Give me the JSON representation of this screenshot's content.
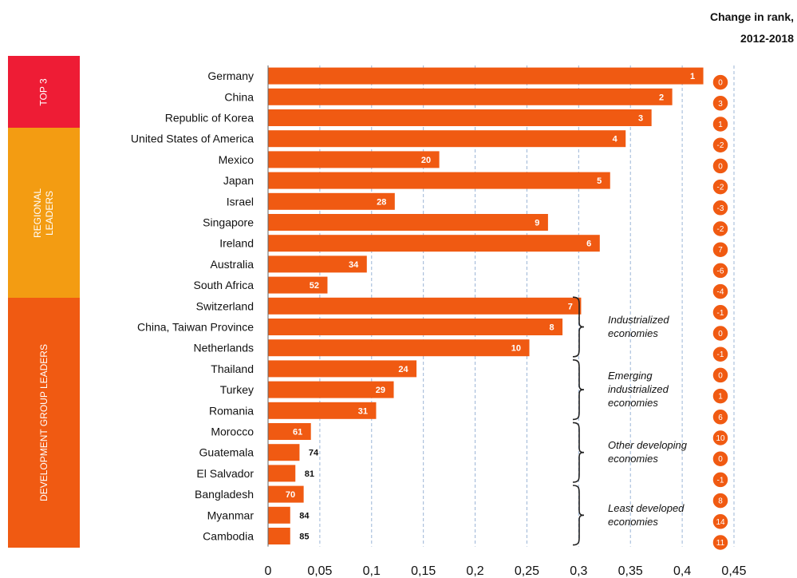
{
  "colors": {
    "bar": "#f05a12",
    "top3": "#ee1c35",
    "regional": "#f39c12",
    "development": "#f05a12",
    "grid": "#9bb5d6"
  },
  "bands": [
    {
      "label": "TOP 3",
      "color": "#ee1c35",
      "rows": [
        0,
        3
      ]
    },
    {
      "label_lines": [
        "REGIONAL",
        "LEADERS"
      ],
      "color": "#f39c12",
      "rows": [
        3,
        11
      ]
    },
    {
      "label": "DEVELOPMENT GROUP LEADERS",
      "color": "#f05a12",
      "rows": [
        11,
        23
      ]
    }
  ],
  "change_header": [
    "Change in rank,",
    "2012-2018"
  ],
  "chart_data": {
    "type": "bar",
    "orientation": "horizontal",
    "categories": [
      "Germany",
      "China",
      "Republic of Korea",
      "United States of America",
      "Mexico",
      "Japan",
      "Israel",
      "Singapore",
      "Ireland",
      "Australia",
      "South Africa",
      "Switzerland",
      "China, Taiwan Province",
      "Netherlands",
      "Thailand",
      "Turkey",
      "Romania",
      "Morocco",
      "Guatemala",
      "El Salvador",
      "Bangladesh",
      "Myanmar",
      "Cambodia"
    ],
    "values": [
      0.42,
      0.39,
      0.37,
      0.345,
      0.165,
      0.33,
      0.122,
      0.27,
      0.32,
      0.095,
      0.057,
      0.302,
      0.284,
      0.252,
      0.143,
      0.121,
      0.104,
      0.041,
      0.03,
      0.026,
      0.034,
      0.021,
      0.021
    ],
    "rank_labels": [
      "1",
      "2",
      "3",
      "4",
      "20",
      "5",
      "28",
      "9",
      "6",
      "34",
      "52",
      "7",
      "8",
      "10",
      "24",
      "29",
      "31",
      "61",
      "74",
      "81",
      "70",
      "84",
      "85"
    ],
    "rank_change": [
      "0",
      "3",
      "1",
      "-2",
      "0",
      "-2",
      "-3",
      "-2",
      "7",
      "-6",
      "-4",
      "-1",
      "0",
      "-1",
      "0",
      "1",
      "6",
      "10",
      "0",
      "-1",
      "8",
      "14",
      "11"
    ],
    "xticks": [
      "0",
      "0,05",
      "0,1",
      "0,15",
      "0,2",
      "0,25",
      "0,3",
      "0,35",
      "0,4",
      "0,45"
    ],
    "xlim": [
      0,
      0.45
    ],
    "grid": "vertical dashed",
    "groups": [
      {
        "lines": [
          "Industrialized",
          "economies"
        ],
        "rows": [
          11,
          13
        ]
      },
      {
        "lines": [
          "Emerging",
          "industrialized",
          "economies"
        ],
        "rows": [
          14,
          16
        ]
      },
      {
        "lines": [
          "Other developing",
          "economies"
        ],
        "rows": [
          17,
          19
        ]
      },
      {
        "lines": [
          "Least developed",
          "economies"
        ],
        "rows": [
          20,
          22
        ]
      }
    ]
  }
}
